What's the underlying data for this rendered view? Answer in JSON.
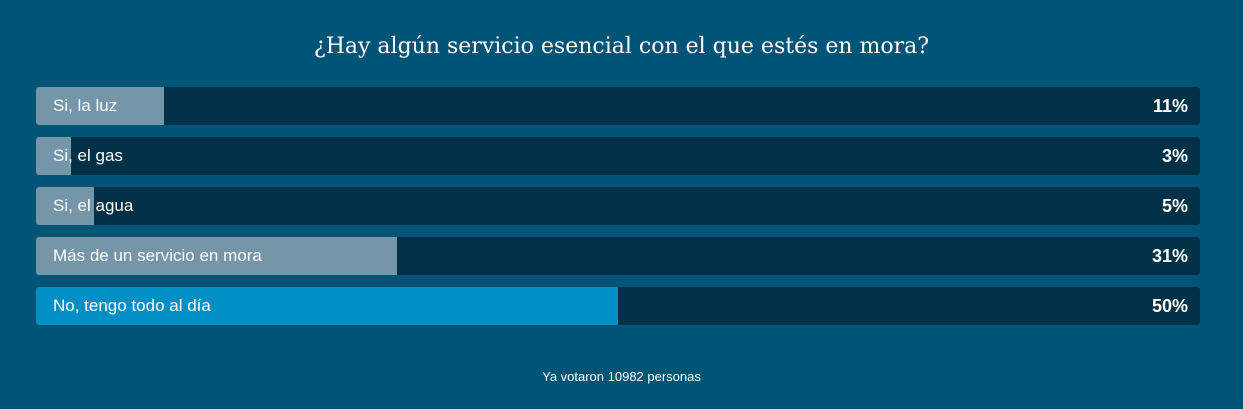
{
  "poll": {
    "question": "¿Hay algún servicio esencial con el que estés en mora?",
    "options": [
      {
        "label": "Si, la luz",
        "percent_label": "11%",
        "percent": 11,
        "leading": false
      },
      {
        "label": "Si, el gas",
        "percent_label": "3%",
        "percent": 3,
        "leading": false
      },
      {
        "label": "Si, el agua",
        "percent_label": "5%",
        "percent": 5,
        "leading": false
      },
      {
        "label": "Más de un servicio en mora",
        "percent_label": "31%",
        "percent": 31,
        "leading": false
      },
      {
        "label": "No, tengo todo al día",
        "percent_label": "50%",
        "percent": 50,
        "leading": true
      }
    ],
    "footer": "Ya votaron 10982 personas"
  },
  "colors": {
    "background": "#005475",
    "track": "#013146",
    "fill": "#7596a8",
    "leading_fill": "#008fc5"
  }
}
